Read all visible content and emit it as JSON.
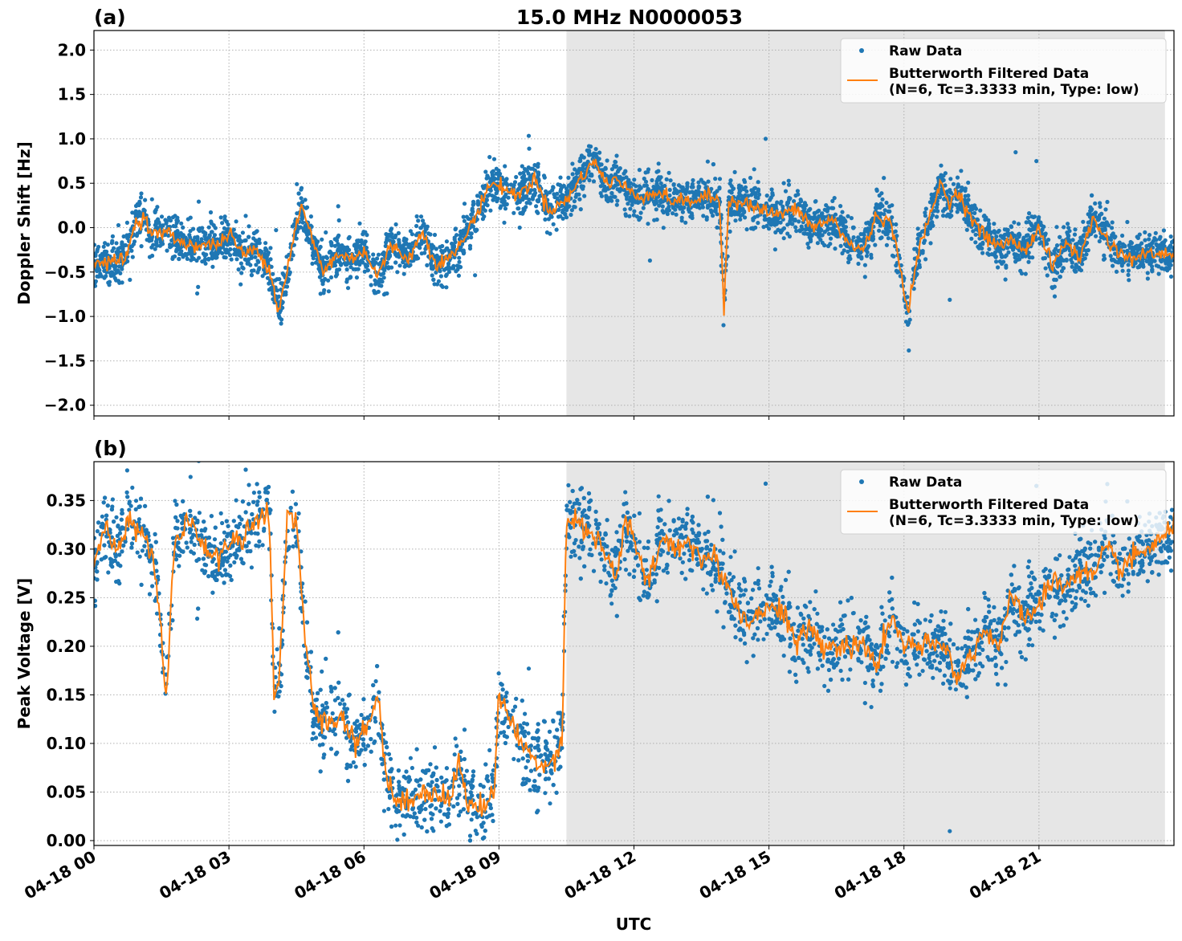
{
  "figure": {
    "title": "15.0 MHz N0000053",
    "xlabel": "UTC"
  },
  "colors": {
    "raw": "#1f77b4",
    "filtered": "#ff7f0e",
    "night_shade": "#e6e6e6",
    "grid": "#b0b0b0"
  },
  "chart_data": [
    {
      "type": "scatter",
      "panel": "(a)",
      "ylabel": "Doppler Shift [Hz]",
      "xlim": [
        0,
        24
      ],
      "ylim": [
        -2.12,
        2.22
      ],
      "shaded_interval_hours": [
        10.5,
        23.8
      ],
      "x_ticks": [
        0,
        3,
        6,
        9,
        12,
        15,
        18,
        21
      ],
      "x_tick_labels": [],
      "y_ticks": [
        -2.0,
        -1.5,
        -1.0,
        -0.5,
        0.0,
        0.5,
        1.0,
        1.5,
        2.0
      ],
      "y_tick_labels": [
        "−2.0",
        "−1.5",
        "−1.0",
        "−0.5",
        "0.0",
        "0.5",
        "1.0",
        "1.5",
        "2.0"
      ],
      "grid": true,
      "legend": {
        "placement": "upper right",
        "entries": [
          "Raw Data",
          "Butterworth Filtered Data\n(N=6, Tc=3.3333 min, Type: low)"
        ]
      },
      "series": [
        {
          "name": "Raw Data",
          "kind": "scatter",
          "spread": 0.22,
          "x": [
            0.0,
            0.2,
            0.5,
            0.75,
            0.9,
            1.1,
            1.3,
            1.6,
            2.0,
            2.4,
            2.8,
            3.0,
            3.3,
            3.6,
            3.9,
            4.1,
            4.4,
            4.6,
            4.8,
            5.1,
            5.4,
            5.7,
            6.0,
            6.3,
            6.6,
            7.0,
            7.3,
            7.6,
            7.9,
            8.2,
            8.5,
            8.8,
            9.1,
            9.4,
            9.8,
            10.1,
            10.5,
            10.8,
            11.1,
            11.4,
            11.6,
            11.8,
            12.1,
            12.5,
            12.9,
            13.3,
            13.7,
            13.9,
            14.0,
            14.1,
            14.4,
            14.8,
            15.2,
            15.6,
            16.0,
            16.4,
            16.8,
            17.1,
            17.4,
            17.7,
            17.9,
            18.1,
            18.3,
            18.6,
            18.8,
            19.0,
            19.2,
            19.5,
            19.8,
            20.1,
            20.4,
            20.7,
            21.0,
            21.3,
            21.6,
            21.9,
            22.2,
            22.6,
            23.0,
            23.4,
            23.8,
            24.0
          ],
          "y": [
            -0.38,
            -0.4,
            -0.38,
            -0.3,
            0.05,
            0.12,
            -0.08,
            -0.05,
            -0.18,
            -0.2,
            -0.18,
            -0.05,
            -0.3,
            -0.25,
            -0.45,
            -0.95,
            -0.2,
            0.25,
            -0.05,
            -0.5,
            -0.3,
            -0.35,
            -0.25,
            -0.55,
            -0.2,
            -0.35,
            -0.05,
            -0.4,
            -0.35,
            -0.15,
            0.15,
            0.5,
            0.45,
            0.35,
            0.55,
            0.2,
            0.3,
            0.55,
            0.75,
            0.5,
            0.55,
            0.45,
            0.35,
            0.4,
            0.3,
            0.3,
            0.35,
            0.3,
            -0.9,
            0.3,
            0.3,
            0.2,
            0.15,
            0.2,
            0.0,
            0.1,
            -0.2,
            -0.25,
            0.15,
            0.05,
            -0.4,
            -0.95,
            -0.3,
            0.15,
            0.5,
            0.3,
            0.4,
            0.1,
            -0.1,
            -0.2,
            -0.15,
            -0.25,
            0.0,
            -0.45,
            -0.15,
            -0.35,
            0.1,
            -0.2,
            -0.35,
            -0.3,
            -0.3,
            -0.3
          ]
        },
        {
          "name": "Butterworth Filtered Data\n(N=6, Tc=3.3333 min, Type: low)",
          "kind": "line",
          "x": [
            0.0,
            0.2,
            0.5,
            0.75,
            0.9,
            1.1,
            1.3,
            1.6,
            2.0,
            2.4,
            2.8,
            3.0,
            3.3,
            3.6,
            3.9,
            4.1,
            4.4,
            4.6,
            4.8,
            5.1,
            5.4,
            5.7,
            6.0,
            6.3,
            6.6,
            7.0,
            7.3,
            7.6,
            7.9,
            8.2,
            8.5,
            8.8,
            9.1,
            9.4,
            9.8,
            10.1,
            10.5,
            10.8,
            11.1,
            11.4,
            11.6,
            11.8,
            12.1,
            12.5,
            12.9,
            13.3,
            13.7,
            13.9,
            14.0,
            14.1,
            14.4,
            14.8,
            15.2,
            15.6,
            16.0,
            16.4,
            16.8,
            17.1,
            17.4,
            17.7,
            17.9,
            18.1,
            18.3,
            18.6,
            18.8,
            19.0,
            19.2,
            19.5,
            19.8,
            20.1,
            20.4,
            20.7,
            21.0,
            21.3,
            21.6,
            21.9,
            22.2,
            22.6,
            23.0,
            23.4,
            23.8,
            24.0
          ],
          "y": [
            -0.38,
            -0.4,
            -0.38,
            -0.3,
            0.05,
            0.12,
            -0.08,
            -0.05,
            -0.18,
            -0.2,
            -0.18,
            -0.05,
            -0.3,
            -0.25,
            -0.45,
            -0.95,
            -0.2,
            0.25,
            -0.05,
            -0.5,
            -0.3,
            -0.35,
            -0.25,
            -0.55,
            -0.2,
            -0.35,
            -0.05,
            -0.4,
            -0.35,
            -0.15,
            0.15,
            0.5,
            0.45,
            0.35,
            0.55,
            0.2,
            0.3,
            0.55,
            0.75,
            0.5,
            0.55,
            0.45,
            0.35,
            0.4,
            0.3,
            0.3,
            0.35,
            0.3,
            -0.9,
            0.3,
            0.3,
            0.2,
            0.15,
            0.2,
            0.0,
            0.1,
            -0.2,
            -0.25,
            0.15,
            0.05,
            -0.4,
            -0.95,
            -0.3,
            0.15,
            0.5,
            0.3,
            0.4,
            0.1,
            -0.1,
            -0.2,
            -0.15,
            -0.25,
            0.0,
            -0.45,
            -0.15,
            -0.35,
            0.1,
            -0.2,
            -0.35,
            -0.3,
            -0.3,
            -0.3
          ]
        }
      ]
    },
    {
      "type": "scatter",
      "panel": "(b)",
      "ylabel": "Peak Voltage [V]",
      "xlim": [
        0,
        24
      ],
      "ylim": [
        -0.005,
        0.39
      ],
      "shaded_interval_hours": [
        10.5,
        23.8
      ],
      "x_ticks": [
        0,
        3,
        6,
        9,
        12,
        15,
        18,
        21
      ],
      "x_tick_labels": [
        "04-18 00",
        "04-18 03",
        "04-18 06",
        "04-18 09",
        "04-18 12",
        "04-18 15",
        "04-18 18",
        "04-18 21"
      ],
      "y_ticks": [
        0.0,
        0.05,
        0.1,
        0.15,
        0.2,
        0.25,
        0.3,
        0.35
      ],
      "y_tick_labels": [
        "0.00",
        "0.05",
        "0.10",
        "0.15",
        "0.20",
        "0.25",
        "0.30",
        "0.35"
      ],
      "grid": true,
      "legend": {
        "placement": "upper right",
        "entries": [
          "Raw Data",
          "Butterworth Filtered Data\n(N=6, Tc=3.3333 min, Type: low)"
        ]
      },
      "series": [
        {
          "name": "Raw Data",
          "kind": "scatter",
          "spread": 0.035,
          "x": [
            0.0,
            0.2,
            0.5,
            0.8,
            1.1,
            1.3,
            1.5,
            1.6,
            1.8,
            2.1,
            2.5,
            2.8,
            3.0,
            3.3,
            3.6,
            3.9,
            4.0,
            4.1,
            4.3,
            4.5,
            4.7,
            4.9,
            5.2,
            5.5,
            5.8,
            6.1,
            6.3,
            6.5,
            6.7,
            7.0,
            7.3,
            7.6,
            7.9,
            8.1,
            8.3,
            8.6,
            8.9,
            9.0,
            9.2,
            9.5,
            9.8,
            10.1,
            10.4,
            10.5,
            10.7,
            11.0,
            11.3,
            11.6,
            11.8,
            12.0,
            12.3,
            12.6,
            12.9,
            13.2,
            13.5,
            13.8,
            14.1,
            14.4,
            14.7,
            15.0,
            15.3,
            15.6,
            15.9,
            16.2,
            16.5,
            16.8,
            17.1,
            17.4,
            17.7,
            18.0,
            18.3,
            18.6,
            18.9,
            19.2,
            19.5,
            19.8,
            20.1,
            20.4,
            20.7,
            21.0,
            21.3,
            21.6,
            21.9,
            22.2,
            22.5,
            22.8,
            23.1,
            23.4,
            23.7,
            24.0
          ],
          "y": [
            0.28,
            0.32,
            0.3,
            0.33,
            0.31,
            0.3,
            0.21,
            0.15,
            0.31,
            0.33,
            0.3,
            0.29,
            0.31,
            0.31,
            0.33,
            0.34,
            0.15,
            0.15,
            0.33,
            0.33,
            0.21,
            0.13,
            0.12,
            0.13,
            0.1,
            0.12,
            0.15,
            0.07,
            0.04,
            0.04,
            0.05,
            0.05,
            0.04,
            0.08,
            0.04,
            0.035,
            0.05,
            0.15,
            0.13,
            0.1,
            0.08,
            0.08,
            0.1,
            0.33,
            0.33,
            0.32,
            0.3,
            0.27,
            0.33,
            0.31,
            0.26,
            0.31,
            0.3,
            0.31,
            0.29,
            0.29,
            0.26,
            0.23,
            0.23,
            0.24,
            0.24,
            0.2,
            0.22,
            0.2,
            0.2,
            0.2,
            0.2,
            0.18,
            0.23,
            0.2,
            0.2,
            0.2,
            0.2,
            0.17,
            0.19,
            0.22,
            0.2,
            0.25,
            0.23,
            0.24,
            0.27,
            0.26,
            0.28,
            0.27,
            0.3,
            0.28,
            0.29,
            0.3,
            0.31,
            0.32
          ]
        },
        {
          "name": "Butterworth Filtered Data\n(N=6, Tc=3.3333 min, Type: low)",
          "kind": "line",
          "x": [
            0.0,
            0.2,
            0.5,
            0.8,
            1.1,
            1.3,
            1.5,
            1.6,
            1.8,
            2.1,
            2.5,
            2.8,
            3.0,
            3.3,
            3.6,
            3.9,
            4.0,
            4.1,
            4.3,
            4.5,
            4.7,
            4.9,
            5.2,
            5.5,
            5.8,
            6.1,
            6.3,
            6.5,
            6.7,
            7.0,
            7.3,
            7.6,
            7.9,
            8.1,
            8.3,
            8.6,
            8.9,
            9.0,
            9.2,
            9.5,
            9.8,
            10.1,
            10.4,
            10.5,
            10.7,
            11.0,
            11.3,
            11.6,
            11.8,
            12.0,
            12.3,
            12.6,
            12.9,
            13.2,
            13.5,
            13.8,
            14.1,
            14.4,
            14.7,
            15.0,
            15.3,
            15.6,
            15.9,
            16.2,
            16.5,
            16.8,
            17.1,
            17.4,
            17.7,
            18.0,
            18.3,
            18.6,
            18.9,
            19.2,
            19.5,
            19.8,
            20.1,
            20.4,
            20.7,
            21.0,
            21.3,
            21.6,
            21.9,
            22.2,
            22.5,
            22.8,
            23.1,
            23.4,
            23.7,
            24.0
          ],
          "y": [
            0.28,
            0.32,
            0.3,
            0.33,
            0.31,
            0.3,
            0.21,
            0.15,
            0.31,
            0.33,
            0.3,
            0.29,
            0.31,
            0.31,
            0.33,
            0.34,
            0.15,
            0.15,
            0.33,
            0.33,
            0.21,
            0.13,
            0.12,
            0.13,
            0.1,
            0.12,
            0.15,
            0.07,
            0.04,
            0.04,
            0.05,
            0.05,
            0.04,
            0.08,
            0.04,
            0.035,
            0.05,
            0.15,
            0.13,
            0.1,
            0.08,
            0.08,
            0.1,
            0.33,
            0.33,
            0.32,
            0.3,
            0.27,
            0.33,
            0.31,
            0.26,
            0.31,
            0.3,
            0.31,
            0.29,
            0.29,
            0.26,
            0.23,
            0.23,
            0.24,
            0.24,
            0.2,
            0.22,
            0.2,
            0.2,
            0.2,
            0.2,
            0.18,
            0.23,
            0.2,
            0.2,
            0.2,
            0.2,
            0.17,
            0.19,
            0.22,
            0.2,
            0.25,
            0.23,
            0.24,
            0.27,
            0.26,
            0.28,
            0.27,
            0.3,
            0.28,
            0.29,
            0.3,
            0.31,
            0.32
          ]
        }
      ]
    }
  ]
}
